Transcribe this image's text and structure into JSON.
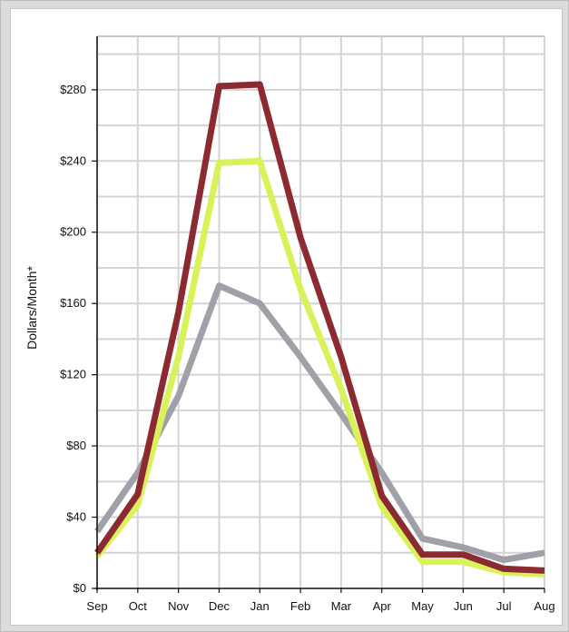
{
  "chart_data": {
    "type": "line",
    "title": "",
    "xlabel": "",
    "ylabel": "Dollars/Month*",
    "categories": [
      "Sep",
      "Oct",
      "Nov",
      "Dec",
      "Jan",
      "Feb",
      "Mar",
      "Apr",
      "May",
      "Jun",
      "Jul",
      "Aug"
    ],
    "yticks": [
      "$0",
      "$40",
      "$80",
      "$120",
      "$160",
      "$200",
      "$240",
      "$280"
    ],
    "ylim": [
      0,
      310
    ],
    "grid": true,
    "legend": "none",
    "series": [
      {
        "color": "#a0a0a8",
        "values": [
          32,
          65,
          108,
          170,
          160,
          130,
          98,
          65,
          28,
          23,
          16,
          20
        ]
      },
      {
        "color": "#d9f25a",
        "values": [
          18,
          47,
          130,
          239,
          240,
          168,
          112,
          46,
          15,
          15,
          9,
          8
        ]
      },
      {
        "color": "#8b2a30",
        "values": [
          20,
          53,
          155,
          282,
          283,
          197,
          130,
          52,
          19,
          19,
          11,
          10
        ]
      }
    ]
  }
}
